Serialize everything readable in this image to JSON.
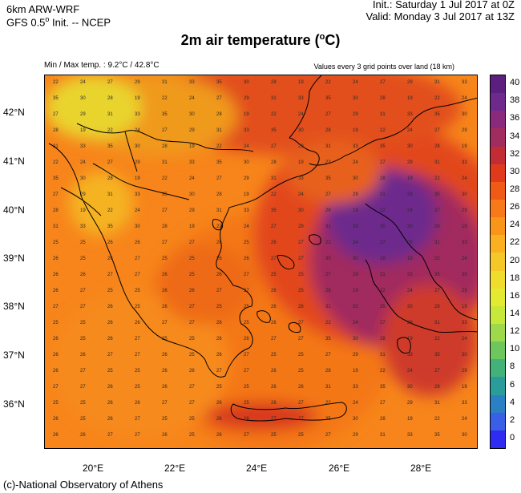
{
  "header": {
    "model": "6km ARW-WRF",
    "init_line_pre": "GFS 0.5",
    "init_line_sup": "o",
    "init_line_post": " Init. -- NCEP",
    "init_time": "Init.:  Saturday 1 Jul 2017 at 0Z",
    "valid_time": "Valid: Monday 3 Jul 2017 at 13Z"
  },
  "title": {
    "main": "2m air temperature (",
    "sup": "o",
    "unit": "C)"
  },
  "stats": {
    "minmax": "Min / Max temp. : 9.2°C / 42.8°C",
    "grid_note": "Values every 3 grid points over land (18 km)"
  },
  "axes": {
    "lat_labels": [
      "42°N",
      "41°N",
      "40°N",
      "39°N",
      "38°N",
      "37°N",
      "36°N"
    ],
    "lon_labels": [
      "20°E",
      "22°E",
      "24°E",
      "26°E",
      "28°E"
    ]
  },
  "colorbar": {
    "labels": [
      "40",
      "38",
      "36",
      "34",
      "32",
      "30",
      "28",
      "26",
      "24",
      "22",
      "20",
      "18",
      "16",
      "14",
      "12",
      "10",
      "8",
      "6",
      "4",
      "2",
      "0"
    ],
    "colors": [
      "#5c1f7f",
      "#6d2a8c",
      "#8b2a7d",
      "#a12c5e",
      "#c22c35",
      "#df3a1c",
      "#ef5a17",
      "#f7791a",
      "#f99519",
      "#fab021",
      "#f6c728",
      "#f0dc2d",
      "#e4ea32",
      "#c6e83a",
      "#9ed94b",
      "#6ec75d",
      "#43b27a",
      "#2a9d9b",
      "#2b80c4",
      "#3b5ee6",
      "#2f2cf2"
    ]
  },
  "map": {
    "sea_samples": [
      "25",
      "25",
      "26",
      "26",
      "27",
      "27",
      "26",
      "25",
      "26",
      "27"
    ],
    "land_samples": [
      "22",
      "24",
      "27",
      "29",
      "31",
      "33",
      "35",
      "30",
      "28",
      "19"
    ]
  },
  "footer": "(c)-National Observatory of Athens"
}
